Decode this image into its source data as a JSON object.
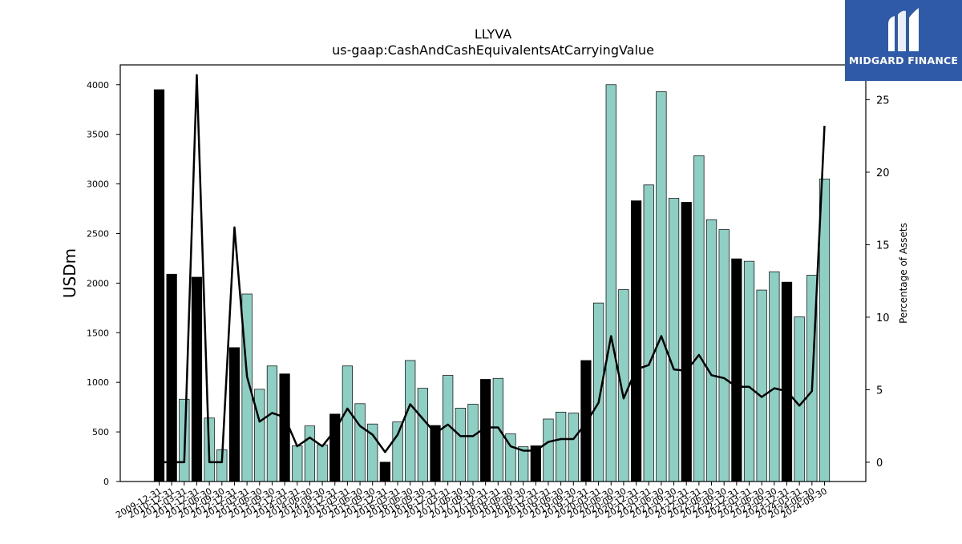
{
  "chart_data": {
    "type": "bar",
    "title": "LLYVA",
    "subtitle": "us-gaap:CashAndCashEquivalentsAtCarryingValue",
    "ylabel": "USDm",
    "y2label": "Percentage of Assets",
    "ylim": [
      0,
      4200
    ],
    "y2lim": [
      -1.33,
      27.4
    ],
    "yticks": [
      0,
      500,
      1000,
      1500,
      2000,
      2500,
      3000,
      3500,
      4000
    ],
    "y2ticks": [
      0,
      5,
      10,
      15,
      20,
      25
    ],
    "grid": false,
    "colors": {
      "annual": "#000000",
      "quarter": "#8ecfc4",
      "line": "#000000"
    },
    "categories": [
      "2009-12-31",
      "2010-12-31",
      "2011-03-31",
      "2011-12-31",
      "2012-06-30",
      "2012-09-30",
      "2012-12-31",
      "2013-03-31",
      "2013-06-30",
      "2013-09-30",
      "2013-12-31",
      "2014-03-31",
      "2014-06-30",
      "2014-09-30",
      "2014-12-31",
      "2015-03-31",
      "2015-06-30",
      "2015-09-30",
      "2015-12-31",
      "2016-03-31",
      "2016-06-30",
      "2016-09-30",
      "2016-12-31",
      "2017-03-31",
      "2017-06-30",
      "2017-09-30",
      "2017-12-31",
      "2018-03-31",
      "2018-06-30",
      "2018-09-30",
      "2018-12-31",
      "2019-03-31",
      "2019-06-30",
      "2019-09-30",
      "2019-12-31",
      "2020-03-31",
      "2020-06-30",
      "2020-09-30",
      "2020-12-31",
      "2021-03-31",
      "2021-06-30",
      "2021-09-30",
      "2021-12-31",
      "2022-03-31",
      "2022-06-30",
      "2022-09-30",
      "2022-12-31",
      "2023-03-31",
      "2023-06-30",
      "2023-09-30",
      "2023-12-31",
      "2024-03-31",
      "2024-06-30",
      "2024-09-30"
    ],
    "values": [
      3950,
      2090,
      830,
      2060,
      640,
      320,
      1350,
      1890,
      930,
      1165,
      1085,
      360,
      560,
      370,
      680,
      1165,
      785,
      580,
      195,
      600,
      1220,
      940,
      565,
      1070,
      740,
      780,
      1030,
      1040,
      480,
      350,
      360,
      630,
      700,
      690,
      1220,
      1800,
      4000,
      1935,
      2830,
      2990,
      3930,
      2855,
      2815,
      3285,
      2640,
      2540,
      2245,
      2220,
      1930,
      2115,
      2010,
      1660,
      2080,
      3050
    ],
    "annual": [
      true,
      true,
      false,
      true,
      false,
      false,
      true,
      false,
      false,
      false,
      true,
      false,
      false,
      false,
      true,
      false,
      false,
      false,
      true,
      false,
      false,
      false,
      true,
      false,
      false,
      false,
      true,
      false,
      false,
      false,
      true,
      false,
      false,
      false,
      true,
      false,
      false,
      false,
      true,
      false,
      false,
      false,
      true,
      false,
      false,
      false,
      true,
      false,
      false,
      false,
      true,
      false,
      false,
      false
    ],
    "series": [
      {
        "values": [
          0,
          0,
          0,
          26.7,
          0,
          0,
          16.2,
          5.9,
          2.8,
          3.4,
          3.1,
          1.1,
          1.7,
          1.1,
          2.2,
          3.7,
          2.5,
          1.9,
          0.7,
          1.9,
          4.0,
          3.0,
          2.0,
          2.6,
          1.8,
          1.8,
          2.4,
          2.4,
          1.1,
          0.8,
          0.8,
          1.4,
          1.6,
          1.6,
          2.7,
          4.1,
          8.7,
          4.4,
          6.4,
          6.7,
          8.7,
          6.4,
          6.3,
          7.4,
          6.0,
          5.8,
          5.2,
          5.2,
          4.5,
          5.1,
          4.9,
          3.9,
          4.9,
          23.2
        ]
      }
    ]
  },
  "logo": {
    "text": "MIDGARD FINANCE"
  }
}
